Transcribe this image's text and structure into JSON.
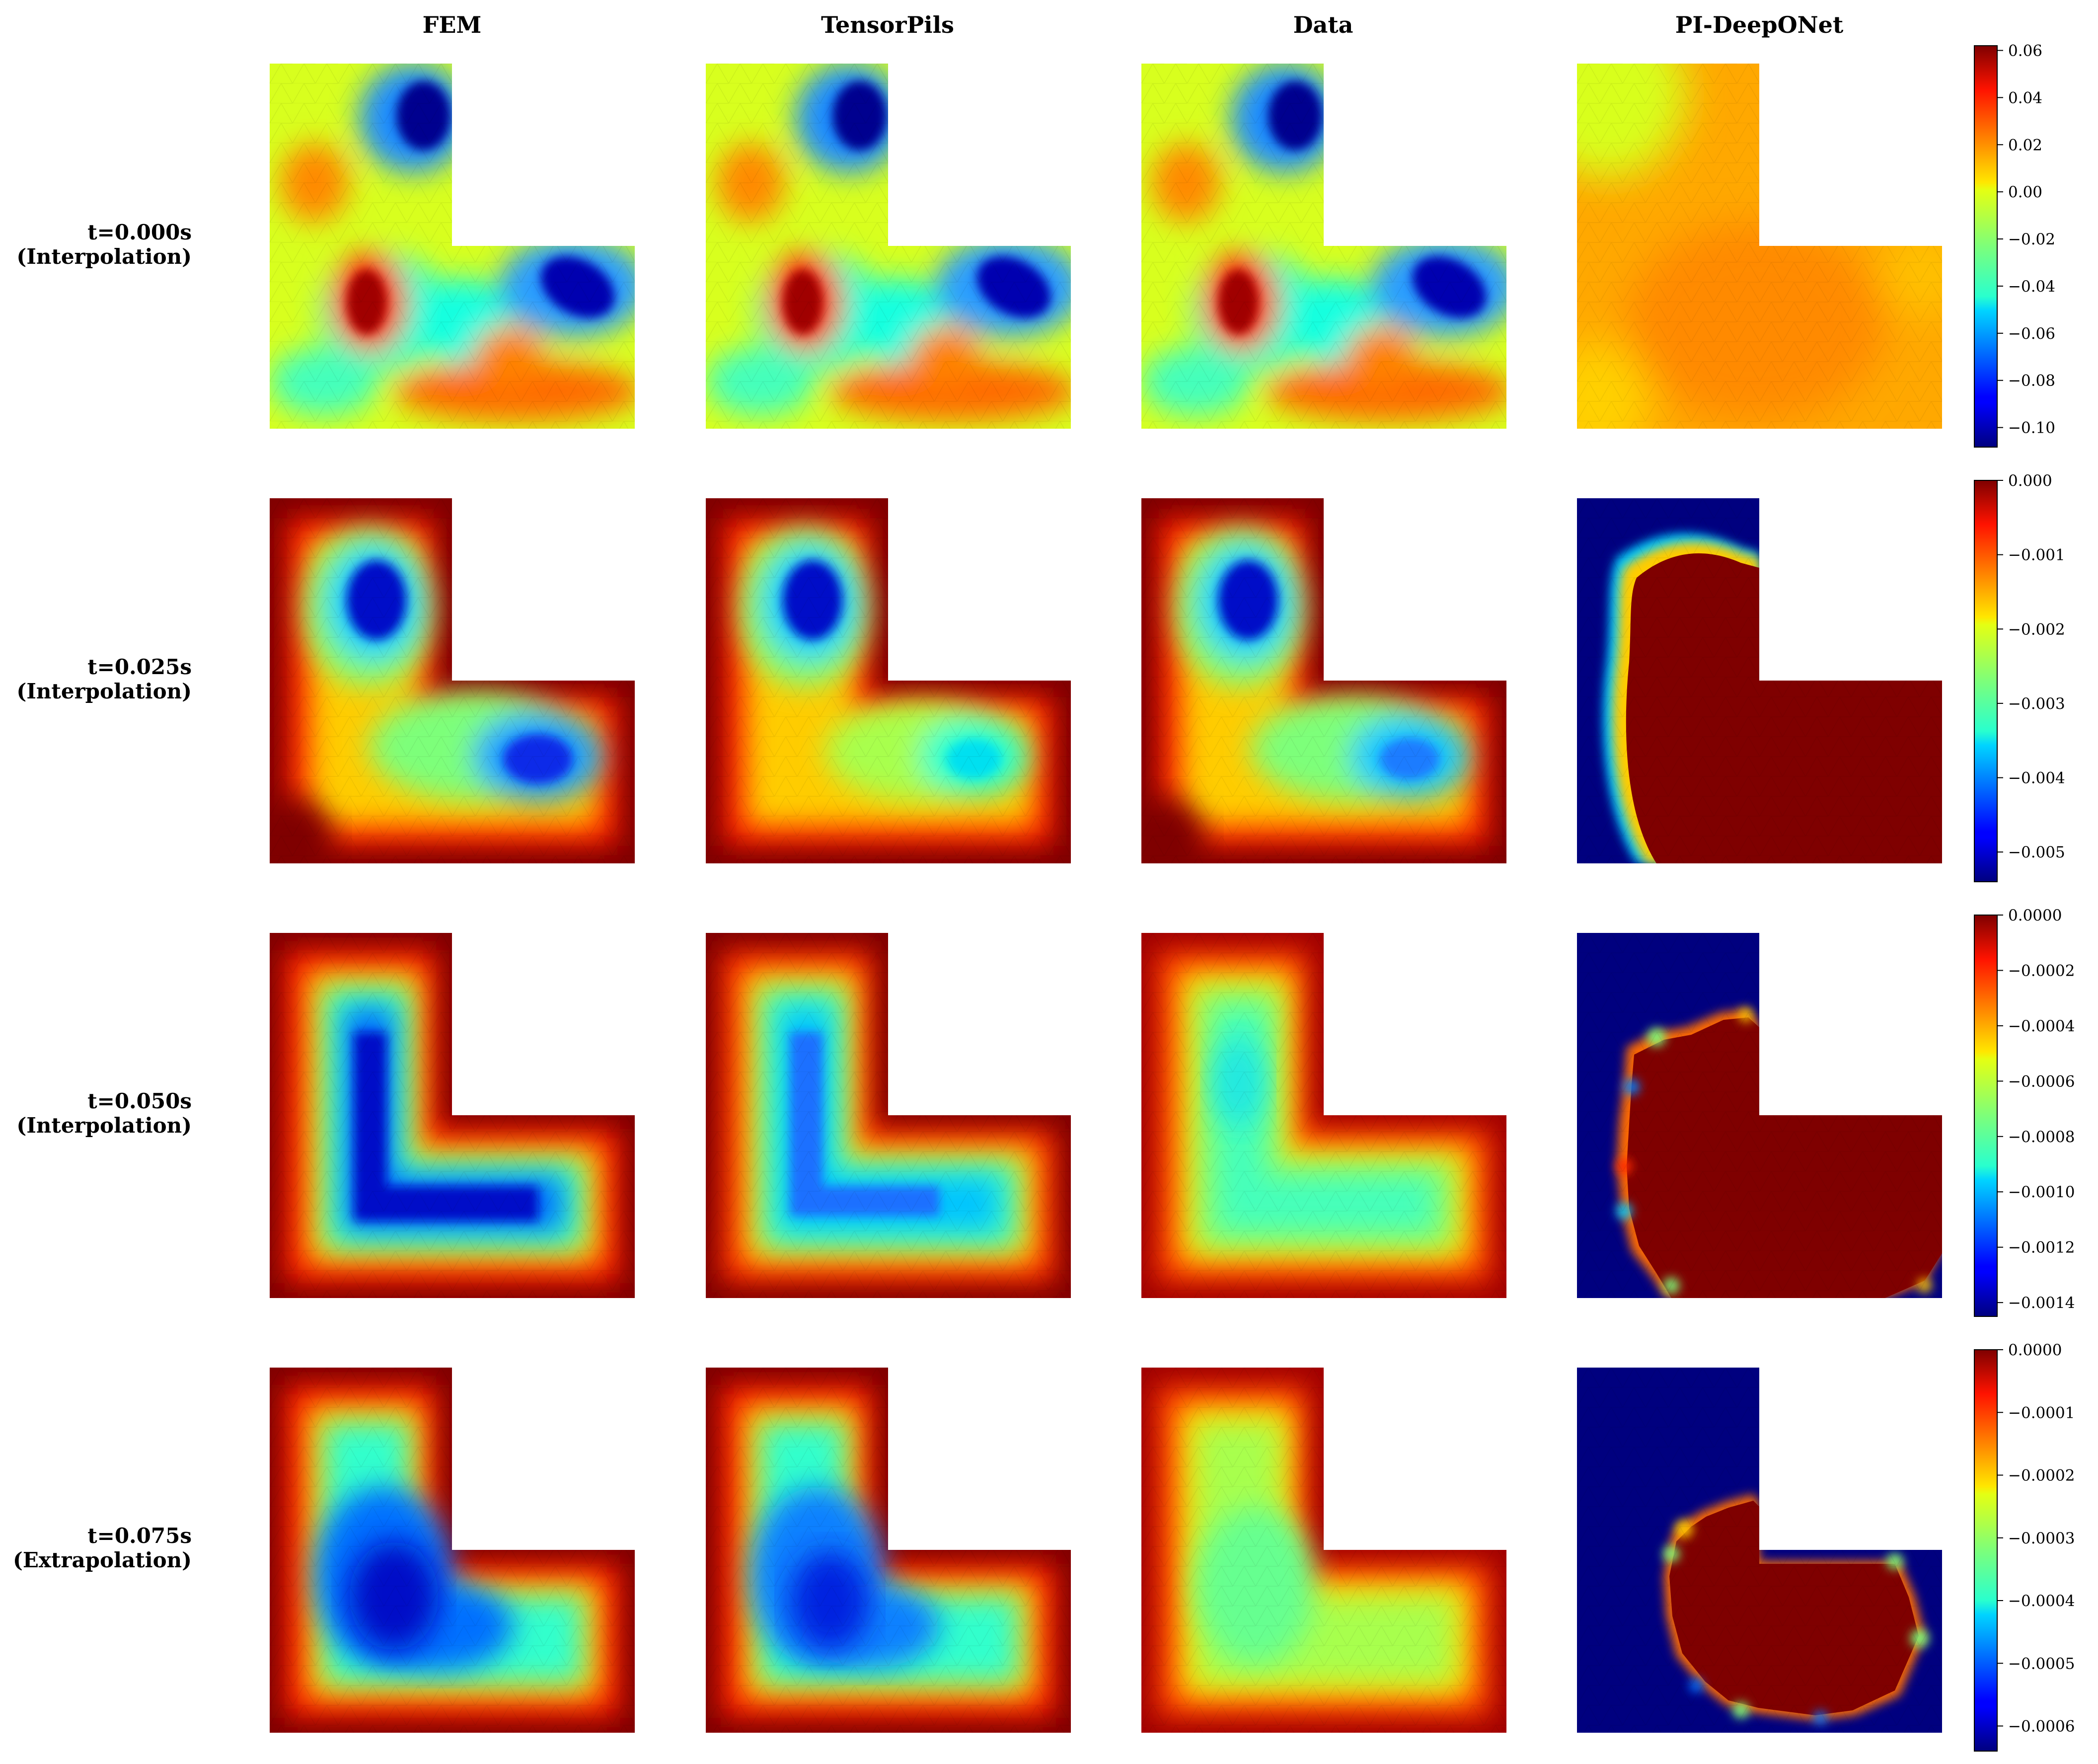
{
  "columns": [
    "FEM",
    "TensorPils",
    "Data",
    "PI-DeepONet"
  ],
  "rows": [
    {
      "time_label": "t=0.000s",
      "mode_label": "(Interpolation)",
      "colorbar": {
        "vmin": -0.1083,
        "vmax": 0.062,
        "ticks": [
          0.06,
          0.04,
          0.02,
          0.0,
          -0.02,
          -0.04,
          -0.06,
          -0.08,
          -0.1
        ],
        "tick_labels": [
          "0.06",
          "0.04",
          "0.02",
          "0.00",
          "−0.02",
          "−0.04",
          "−0.06",
          "−0.08",
          "−0.10"
        ]
      }
    },
    {
      "time_label": "t=0.025s",
      "mode_label": "(Interpolation)",
      "colorbar": {
        "vmin": -0.0054,
        "vmax": 0.0,
        "ticks": [
          0.0,
          -0.001,
          -0.002,
          -0.003,
          -0.004,
          -0.005
        ],
        "tick_labels": [
          "0.000",
          "−0.001",
          "−0.002",
          "−0.003",
          "−0.004",
          "−0.005"
        ]
      }
    },
    {
      "time_label": "t=0.050s",
      "mode_label": "(Interpolation)",
      "colorbar": {
        "vmin": -0.00145,
        "vmax": 0.0,
        "ticks": [
          0.0,
          -0.0002,
          -0.0004,
          -0.0006,
          -0.0008,
          -0.001,
          -0.0012,
          -0.0014
        ],
        "tick_labels": [
          "0.0000",
          "−0.0002",
          "−0.0004",
          "−0.0006",
          "−0.0008",
          "−0.0010",
          "−0.0012",
          "−0.0014"
        ]
      }
    },
    {
      "time_label": "t=0.075s",
      "mode_label": "(Extrapolation)",
      "colorbar": {
        "vmin": -0.00064,
        "vmax": 0.0,
        "ticks": [
          0.0,
          -0.0001,
          -0.0002,
          -0.0003,
          -0.0004,
          -0.0005,
          -0.0006
        ],
        "tick_labels": [
          "0.0000",
          "−0.0001",
          "−0.0002",
          "−0.0003",
          "−0.0004",
          "−0.0005",
          "−0.0006"
        ]
      }
    }
  ],
  "colormap": "jet",
  "domain_shape": "L-shaped"
}
